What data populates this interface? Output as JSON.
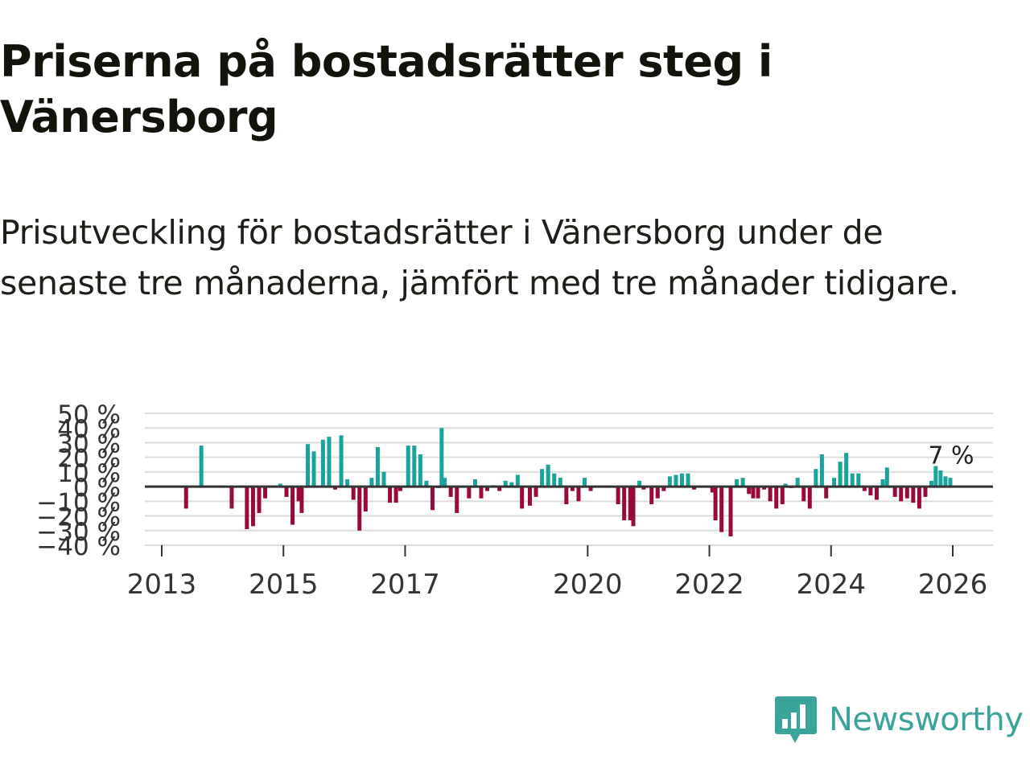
{
  "title": "Priserna på bostadsrätter steg i Vänersborg",
  "subtitle": "Prisutveckling för bostadsrätter i Vänersborg under de senaste tre månaderna, jämfört med tre månader tidigare.",
  "brand": {
    "name": "Newsworthy",
    "icon": "newsworthy-logo-icon"
  },
  "colors": {
    "positive": "#1aa39a",
    "negative": "#990a3a",
    "grid": "#dcdcdc",
    "zero_line": "#333333",
    "text": "#333333",
    "brand": "#3aa39a"
  },
  "chart_data": {
    "type": "bar",
    "ylim": [
      -40,
      50
    ],
    "y_ticks": [
      50,
      40,
      30,
      20,
      10,
      0,
      -10,
      -20,
      -30,
      -40
    ],
    "y_tick_labels": [
      "50 %",
      "40 %",
      "30 %",
      "20 %",
      "10 %",
      "0 %",
      "−10 %",
      "−20 %",
      "−30 %",
      "−40 %"
    ],
    "x_ticks": [
      2013,
      2015,
      2017,
      2020,
      2022,
      2024,
      2026
    ],
    "x_tick_labels": [
      "2013",
      "2015",
      "2017",
      "2020",
      "2022",
      "2024",
      "2026"
    ],
    "annotation": {
      "text": "7 %",
      "x": 2025.92,
      "y": 7
    },
    "series": [
      {
        "name": "Prisutveckling",
        "x": [
          2013.4,
          2013.65,
          2014.15,
          2014.4,
          2014.5,
          2014.6,
          2014.7,
          2014.95,
          2015.05,
          2015.15,
          2015.25,
          2015.3,
          2015.4,
          2015.5,
          2015.65,
          2015.75,
          2015.85,
          2015.95,
          2016.05,
          2016.15,
          2016.25,
          2016.35,
          2016.45,
          2016.55,
          2016.65,
          2016.75,
          2016.85,
          2016.92,
          2017.05,
          2017.15,
          2017.25,
          2017.35,
          2017.45,
          2017.55,
          2017.6,
          2017.65,
          2017.75,
          2017.85,
          2018.05,
          2018.15,
          2018.25,
          2018.35,
          2018.45,
          2018.55,
          2018.65,
          2018.75,
          2018.85,
          2018.92,
          2019.05,
          2019.15,
          2019.25,
          2019.35,
          2019.45,
          2019.55,
          2019.65,
          2019.75,
          2019.85,
          2019.95,
          2020.05,
          2020.5,
          2020.6,
          2020.7,
          2020.75,
          2020.85,
          2020.92,
          2021.05,
          2021.15,
          2021.25,
          2021.35,
          2021.45,
          2021.55,
          2021.65,
          2021.75,
          2022.05,
          2022.1,
          2022.2,
          2022.35,
          2022.45,
          2022.55,
          2022.65,
          2022.72,
          2022.8,
          2022.9,
          2023.0,
          2023.1,
          2023.2,
          2023.25,
          2023.35,
          2023.45,
          2023.55,
          2023.65,
          2023.75,
          2023.85,
          2023.92,
          2024.05,
          2024.15,
          2024.25,
          2024.35,
          2024.45,
          2024.55,
          2024.65,
          2024.75,
          2024.85,
          2024.92,
          2025.05,
          2025.15,
          2025.25,
          2025.35,
          2025.45,
          2025.55,
          2025.65,
          2025.72,
          2025.8,
          2025.88,
          2025.96
        ],
        "values": [
          -15,
          28,
          -15,
          -29,
          -27,
          -18,
          -8,
          2,
          -7,
          -26,
          -10,
          -18,
          29,
          24,
          32,
          34,
          -2,
          35,
          5,
          -9,
          -30,
          -17,
          6,
          27,
          10,
          -11,
          -11,
          -3,
          28,
          28,
          22,
          4,
          -16,
          -1,
          40,
          6,
          -7,
          -18,
          -8,
          5,
          -8,
          -3,
          1,
          -3,
          4,
          3,
          8,
          -15,
          -13,
          -7,
          12,
          15,
          9,
          6,
          -12,
          -3,
          -10,
          6,
          -3,
          -12,
          -23,
          -23,
          -27,
          4,
          -2,
          -12,
          -8,
          -3,
          7,
          8,
          9,
          9,
          -2,
          -4,
          -23,
          -31,
          -34,
          5,
          6,
          -5,
          -8,
          -8,
          -2,
          -10,
          -15,
          -12,
          2,
          -1,
          6,
          -10,
          -15,
          12,
          22,
          -8,
          6,
          17,
          23,
          9,
          9,
          -3,
          -6,
          -9,
          5,
          13,
          -7,
          -10,
          -8,
          -11,
          -15,
          -7,
          4,
          14,
          11,
          7,
          6
        ]
      }
    ]
  }
}
